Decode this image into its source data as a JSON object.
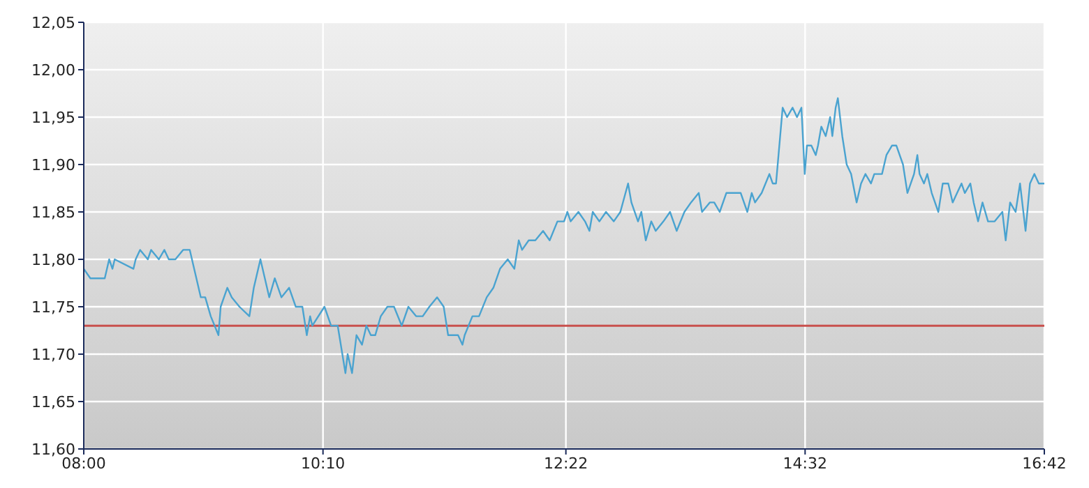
{
  "chart_data": {
    "type": "line",
    "x": [
      8.0,
      8.06,
      8.19,
      8.23,
      8.26,
      8.28,
      8.45,
      8.47,
      8.51,
      8.58,
      8.61,
      8.68,
      8.73,
      8.77,
      8.83,
      8.9,
      8.96,
      9.02,
      9.06,
      9.1,
      9.15,
      9.22,
      9.24,
      9.3,
      9.34,
      9.41,
      9.5,
      9.54,
      9.6,
      9.64,
      9.68,
      9.73,
      9.79,
      9.86,
      9.92,
      9.98,
      10.02,
      10.05,
      10.07,
      10.18,
      10.24,
      10.3,
      10.37,
      10.39,
      10.43,
      10.47,
      10.52,
      10.56,
      10.6,
      10.64,
      10.69,
      10.75,
      10.81,
      10.88,
      10.94,
      11.01,
      11.07,
      11.13,
      11.2,
      11.26,
      11.3,
      11.33,
      11.39,
      11.43,
      11.45,
      11.52,
      11.58,
      11.65,
      11.71,
      11.77,
      11.84,
      11.9,
      11.94,
      11.97,
      12.03,
      12.09,
      12.16,
      12.22,
      12.29,
      12.35,
      12.38,
      12.41,
      12.48,
      12.54,
      12.58,
      12.61,
      12.67,
      12.73,
      12.8,
      12.86,
      12.93,
      12.96,
      13.02,
      13.05,
      13.09,
      13.14,
      13.18,
      13.25,
      13.31,
      13.37,
      13.44,
      13.5,
      13.57,
      13.6,
      13.67,
      13.71,
      13.76,
      13.82,
      13.89,
      13.95,
      14.01,
      14.05,
      14.08,
      14.14,
      14.21,
      14.24,
      14.27,
      14.33,
      14.37,
      14.42,
      14.46,
      14.5,
      14.53,
      14.55,
      14.59,
      14.63,
      14.65,
      14.68,
      14.72,
      14.76,
      14.78,
      14.81,
      14.83,
      14.87,
      14.91,
      14.95,
      15.0,
      15.04,
      15.08,
      15.13,
      15.16,
      15.23,
      15.27,
      15.32,
      15.36,
      15.42,
      15.46,
      15.52,
      15.55,
      15.57,
      15.61,
      15.64,
      15.68,
      15.74,
      15.78,
      15.83,
      15.87,
      15.91,
      15.95,
      15.98,
      16.03,
      16.06,
      16.1,
      16.14,
      16.19,
      16.25,
      16.32,
      16.35,
      16.39,
      16.44,
      16.48,
      16.53,
      16.57,
      16.61,
      16.65,
      16.7
    ],
    "series": [
      {
        "color": "#4aa3d0",
        "values": [
          11.79,
          11.78,
          11.78,
          11.8,
          11.79,
          11.8,
          11.79,
          11.8,
          11.81,
          11.8,
          11.81,
          11.8,
          11.81,
          11.8,
          11.8,
          11.81,
          11.81,
          11.78,
          11.76,
          11.76,
          11.74,
          11.72,
          11.75,
          11.77,
          11.76,
          11.75,
          11.74,
          11.77,
          11.8,
          11.78,
          11.76,
          11.78,
          11.76,
          11.77,
          11.75,
          11.75,
          11.72,
          11.74,
          11.73,
          11.75,
          11.73,
          11.73,
          11.68,
          11.7,
          11.68,
          11.72,
          11.71,
          11.73,
          11.72,
          11.72,
          11.74,
          11.75,
          11.75,
          11.73,
          11.75,
          11.74,
          11.74,
          11.75,
          11.76,
          11.75,
          11.72,
          11.72,
          11.72,
          11.71,
          11.72,
          11.74,
          11.74,
          11.76,
          11.77,
          11.79,
          11.8,
          11.79,
          11.82,
          11.81,
          11.82,
          11.82,
          11.83,
          11.82,
          11.84,
          11.84,
          11.85,
          11.84,
          11.85,
          11.84,
          11.83,
          11.85,
          11.84,
          11.85,
          11.84,
          11.85,
          11.88,
          11.86,
          11.84,
          11.85,
          11.82,
          11.84,
          11.83,
          11.84,
          11.85,
          11.83,
          11.85,
          11.86,
          11.87,
          11.85,
          11.86,
          11.86,
          11.85,
          11.87,
          11.87,
          11.87,
          11.85,
          11.87,
          11.86,
          11.87,
          11.89,
          11.88,
          11.88,
          11.96,
          11.95,
          11.96,
          11.95,
          11.96,
          11.89,
          11.92,
          11.92,
          11.91,
          11.92,
          11.94,
          11.93,
          11.95,
          11.93,
          11.96,
          11.97,
          11.93,
          11.9,
          11.89,
          11.86,
          11.88,
          11.89,
          11.88,
          11.89,
          11.89,
          11.91,
          11.92,
          11.92,
          11.9,
          11.87,
          11.89,
          11.91,
          11.89,
          11.88,
          11.89,
          11.87,
          11.85,
          11.88,
          11.88,
          11.86,
          11.87,
          11.88,
          11.87,
          11.88,
          11.86,
          11.84,
          11.86,
          11.84,
          11.84,
          11.85,
          11.82,
          11.86,
          11.85,
          11.88,
          11.83,
          11.88,
          11.89,
          11.88,
          11.88
        ]
      }
    ],
    "xlim": [
      8,
      16.7
    ],
    "xticks": [
      {
        "value": 8,
        "label": "08:00"
      },
      {
        "value": 10.1667,
        "label": "10:10"
      },
      {
        "value": 12.3667,
        "label": "12:22"
      },
      {
        "value": 14.5333,
        "label": "14:32"
      },
      {
        "value": 16.7,
        "label": "16:42"
      }
    ],
    "ylim": [
      11.6,
      12.05
    ],
    "yticks": [
      {
        "value": 11.6,
        "label": "11,60"
      },
      {
        "value": 11.65,
        "label": "11,65"
      },
      {
        "value": 11.7,
        "label": "11,70"
      },
      {
        "value": 11.75,
        "label": "11,75"
      },
      {
        "value": 11.8,
        "label": "11,80"
      },
      {
        "value": 11.85,
        "label": "11,85"
      },
      {
        "value": 11.9,
        "label": "11,90"
      },
      {
        "value": 11.95,
        "label": "11,95"
      },
      {
        "value": 12,
        "label": "12,00"
      },
      {
        "value": 12.05,
        "label": "12,05"
      }
    ],
    "ref_lines": [
      {
        "axis": "y",
        "value": 11.73,
        "color": "#c8504d"
      }
    ],
    "grid": true,
    "marker": "none",
    "line_style": "solid"
  }
}
